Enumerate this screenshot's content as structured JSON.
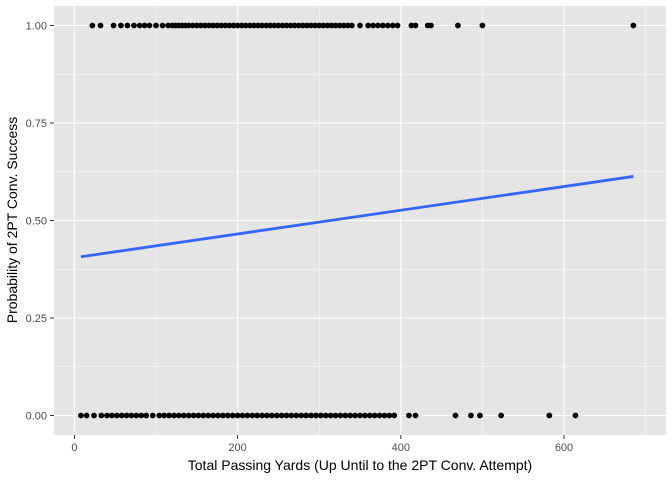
{
  "chart_data": {
    "type": "scatter",
    "title": "",
    "xlabel": "Total Passing Yards (Up Until to the 2PT Conv. Attempt)",
    "ylabel": "Probability of 2PT Conv. Success",
    "xlim": [
      -25,
      725
    ],
    "ylim": [
      -0.05,
      1.05
    ],
    "x_ticks": [
      0,
      200,
      400,
      600
    ],
    "x_tick_labels": [
      "0",
      "200",
      "400",
      "600"
    ],
    "y_ticks": [
      0,
      0.25,
      0.5,
      0.75,
      1
    ],
    "y_tick_labels": [
      "0.00",
      "0.25",
      "0.50",
      "0.75",
      "1.00"
    ],
    "grid": true,
    "background": "#e5e5e5",
    "grid_major_color": "#ffffff",
    "point_color": "#000000",
    "line_color": "#3366ff",
    "series": [
      {
        "kind": "points",
        "y": 1,
        "x": [
          22,
          32,
          48,
          57,
          65,
          73,
          80,
          86,
          92,
          100,
          108,
          115,
          120,
          124,
          128,
          132,
          136,
          140,
          145,
          150,
          155,
          160,
          165,
          170,
          175,
          180,
          185,
          190,
          195,
          200,
          205,
          210,
          215,
          220,
          225,
          230,
          235,
          240,
          245,
          250,
          255,
          260,
          265,
          270,
          275,
          280,
          285,
          290,
          295,
          300,
          305,
          310,
          315,
          320,
          325,
          330,
          335,
          340,
          350,
          360,
          366,
          372,
          378,
          384,
          390,
          396,
          413,
          418,
          433,
          437,
          470,
          500,
          685
        ]
      },
      {
        "kind": "points",
        "y": 0,
        "x": [
          8,
          15,
          24,
          33,
          40,
          46,
          52,
          58,
          64,
          70,
          76,
          82,
          88,
          96,
          104,
          110,
          116,
          122,
          128,
          134,
          140,
          146,
          152,
          158,
          164,
          170,
          176,
          182,
          188,
          194,
          200,
          206,
          212,
          218,
          224,
          230,
          236,
          242,
          248,
          254,
          260,
          266,
          272,
          278,
          284,
          290,
          296,
          302,
          308,
          314,
          320,
          326,
          332,
          338,
          344,
          350,
          356,
          362,
          368,
          374,
          380,
          386,
          392,
          410,
          418,
          467,
          486,
          497,
          523,
          582,
          614
        ]
      },
      {
        "kind": "line",
        "x": [
          8,
          685
        ],
        "y": [
          0.407,
          0.613
        ]
      }
    ]
  }
}
